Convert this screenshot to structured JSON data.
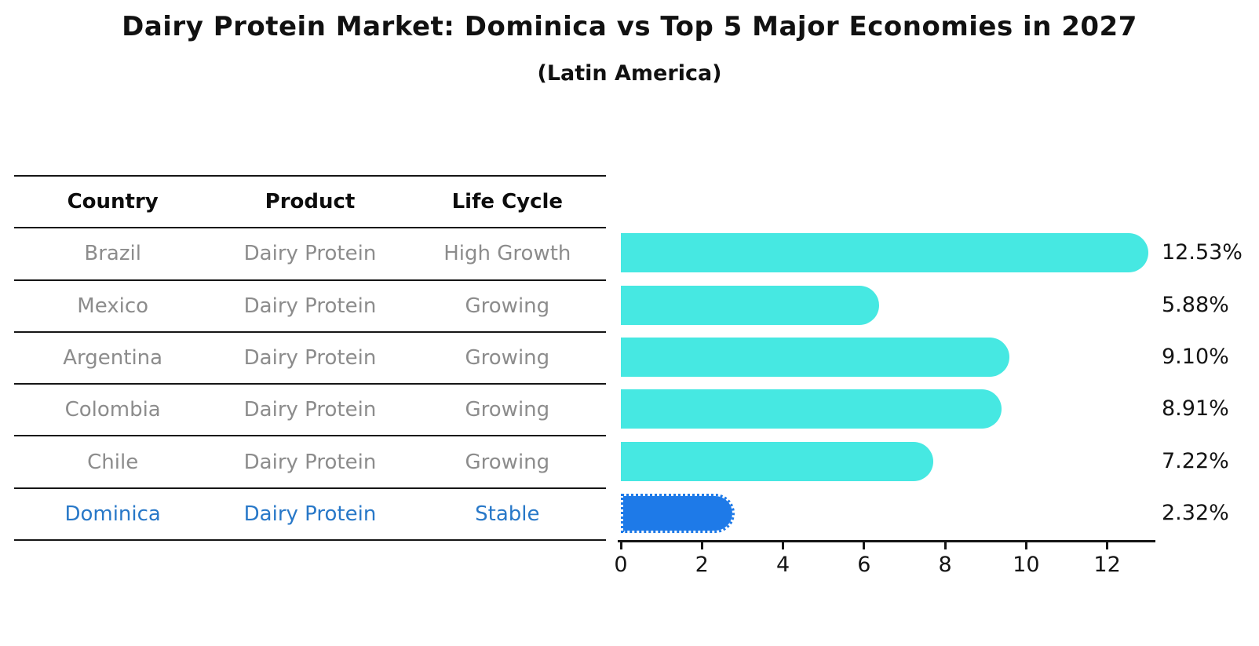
{
  "chart_data": {
    "type": "bar",
    "orientation": "horizontal",
    "title": "Dairy Protein Market: Dominica vs Top 5 Major Economies in 2027",
    "subtitle": "(Latin America)",
    "categories": [
      "Brazil",
      "Mexico",
      "Argentina",
      "Colombia",
      "Chile",
      "Dominica"
    ],
    "values": [
      12.53,
      5.88,
      9.1,
      8.91,
      7.22,
      2.32
    ],
    "value_labels": [
      "12.53%",
      "5.88%",
      "9.10%",
      "8.91%",
      "7.22%",
      "2.32%"
    ],
    "xticks": [
      0,
      2,
      4,
      6,
      8,
      10,
      12
    ],
    "xlim": [
      0,
      13.15
    ],
    "grid": false,
    "legend": false,
    "bar_color": "#46E8E2",
    "highlight_color": "#1E7AE8",
    "highlight_index": 5,
    "highlight_edge_style": "dotted"
  },
  "table": {
    "headers": [
      "Country",
      "Product",
      "Life Cycle"
    ],
    "rows": [
      {
        "country": "Brazil",
        "product": "Dairy Protein",
        "life_cycle": "High Growth",
        "highlight": false
      },
      {
        "country": "Mexico",
        "product": "Dairy Protein",
        "life_cycle": "Growing",
        "highlight": false
      },
      {
        "country": "Argentina",
        "product": "Dairy Protein",
        "life_cycle": "Growing",
        "highlight": false
      },
      {
        "country": "Colombia",
        "product": "Dairy Protein",
        "life_cycle": "Growing",
        "highlight": false
      },
      {
        "country": "Chile",
        "product": "Dairy Protein",
        "life_cycle": "Growing",
        "highlight": false
      },
      {
        "country": "Dominica",
        "product": "Dairy Protein",
        "life_cycle": "Stable",
        "highlight": true
      }
    ]
  },
  "colors": {
    "accent_text": "#2878C8",
    "text_dark": "#111111",
    "text_gray": "#8C8C8C",
    "line_black": "#151515"
  }
}
